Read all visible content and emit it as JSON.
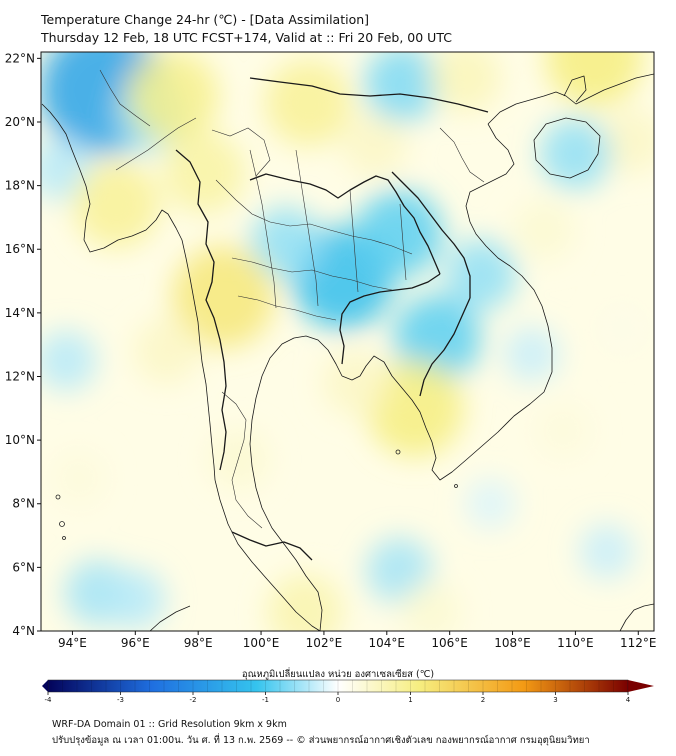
{
  "header": {
    "title": "Temperature Change 24-hr (℃) - [Data Assimilation]",
    "subtitle": "Thursday 12 Feb, 18 UTC FCST+174, Valid at :: Fri 20 Feb, 00 UTC"
  },
  "map": {
    "lon_range": [
      93,
      112.5
    ],
    "lat_range": [
      4,
      22.2
    ],
    "lat_ticks": [
      {
        "value": 22,
        "label": "22°N"
      },
      {
        "value": 20,
        "label": "20°N"
      },
      {
        "value": 18,
        "label": "18°N"
      },
      {
        "value": 16,
        "label": "16°N"
      },
      {
        "value": 14,
        "label": "14°N"
      },
      {
        "value": 12,
        "label": "12°N"
      },
      {
        "value": 10,
        "label": "10°N"
      },
      {
        "value": 8,
        "label": "8°N"
      },
      {
        "value": 6,
        "label": "6°N"
      },
      {
        "value": 4,
        "label": "4°N"
      }
    ],
    "lon_ticks": [
      {
        "value": 94,
        "label": "94°E"
      },
      {
        "value": 96,
        "label": "96°E"
      },
      {
        "value": 98,
        "label": "98°E"
      },
      {
        "value": 100,
        "label": "100°E"
      },
      {
        "value": 102,
        "label": "102°E"
      },
      {
        "value": 104,
        "label": "104°E"
      },
      {
        "value": 106,
        "label": "106°E"
      },
      {
        "value": 108,
        "label": "108°E"
      },
      {
        "value": 110,
        "label": "110°E"
      },
      {
        "value": 112,
        "label": "112°E"
      }
    ],
    "field_anomalies": [
      {
        "lon": 95,
        "lat": 21,
        "value": -1.7
      },
      {
        "lon": 96.5,
        "lat": 20.2,
        "value": -0.6
      },
      {
        "lon": 93.6,
        "lat": 18.5,
        "value": -0.4
      },
      {
        "lon": 97.2,
        "lat": 20.8,
        "value": 1.0
      },
      {
        "lon": 98.2,
        "lat": 18.4,
        "value": 0.8
      },
      {
        "lon": 95.4,
        "lat": 17.4,
        "value": 0.9
      },
      {
        "lon": 101.5,
        "lat": 20.6,
        "value": 0.9
      },
      {
        "lon": 103.6,
        "lat": 19.3,
        "value": 0.5
      },
      {
        "lon": 104.5,
        "lat": 21.2,
        "value": -0.7
      },
      {
        "lon": 106.5,
        "lat": 21.4,
        "value": 0.6
      },
      {
        "lon": 110.6,
        "lat": 22.0,
        "value": 1.1
      },
      {
        "lon": 111.8,
        "lat": 19.4,
        "value": 0.5
      },
      {
        "lon": 110.0,
        "lat": 19.0,
        "value": -0.6
      },
      {
        "lon": 102.6,
        "lat": 15.1,
        "value": -1.2
      },
      {
        "lon": 104.4,
        "lat": 16.5,
        "value": -0.9
      },
      {
        "lon": 100.8,
        "lat": 16.2,
        "value": -0.6
      },
      {
        "lon": 105.6,
        "lat": 13.2,
        "value": -0.9
      },
      {
        "lon": 107.0,
        "lat": 15.2,
        "value": -0.6
      },
      {
        "lon": 109.0,
        "lat": 16.6,
        "value": 0.4
      },
      {
        "lon": 98.8,
        "lat": 14.5,
        "value": 1.2
      },
      {
        "lon": 97.0,
        "lat": 12.8,
        "value": 0.5
      },
      {
        "lon": 104.9,
        "lat": 11.0,
        "value": 1.1
      },
      {
        "lon": 103.0,
        "lat": 11.8,
        "value": 0.5
      },
      {
        "lon": 108.6,
        "lat": 12.7,
        "value": -0.3
      },
      {
        "lon": 93.8,
        "lat": 12.5,
        "value": -0.4
      },
      {
        "lon": 94.2,
        "lat": 8.8,
        "value": 0.3
      },
      {
        "lon": 94.8,
        "lat": 5.2,
        "value": -0.5
      },
      {
        "lon": 96.0,
        "lat": 5.0,
        "value": -0.4
      },
      {
        "lon": 101.4,
        "lat": 4.6,
        "value": 0.7
      },
      {
        "lon": 104.4,
        "lat": 5.9,
        "value": -0.5
      },
      {
        "lon": 105.4,
        "lat": 4.6,
        "value": 0.4
      },
      {
        "lon": 107.3,
        "lat": 8.0,
        "value": -0.2
      },
      {
        "lon": 109.6,
        "lat": 10.3,
        "value": 0.3
      },
      {
        "lon": 111.0,
        "lat": 6.5,
        "value": -0.3
      },
      {
        "lon": 111.5,
        "lat": 13.5,
        "value": 0.2
      },
      {
        "lon": 99.3,
        "lat": 9.4,
        "value": 0.4
      }
    ]
  },
  "colorbar": {
    "title": "อุณหภูมิเปลี่ยนแปลง หน่วย องศาเซลเซียส (℃)",
    "min": -4,
    "max": 4,
    "ticks": [
      {
        "value": -4,
        "label": "-4"
      },
      {
        "value": -3,
        "label": "-3"
      },
      {
        "value": -2,
        "label": "-2"
      },
      {
        "value": -1,
        "label": "-1"
      },
      {
        "value": 0,
        "label": "0"
      },
      {
        "value": 1,
        "label": "1"
      },
      {
        "value": 2,
        "label": "2"
      },
      {
        "value": 3,
        "label": "3"
      },
      {
        "value": 4,
        "label": "4"
      }
    ],
    "colors": {
      "cold_max": "#03035a",
      "cold_mid": "#1f6fe0",
      "cool": "#35c4ee",
      "neutral": "#ffffff",
      "warm": "#f6ee80",
      "hot_mid": "#f39a14",
      "hot_max": "#7a0000"
    }
  },
  "footer": {
    "line1": "WRF-DA Domain 01 :: Grid Resolution 9km x 9km",
    "line2": "ปรับปรุงข้อมูล ณ เวลา 01:00น. วัน ศ. ที่ 13 ก.พ. 2569 -- © ส่วนพยากรณ์อากาศเชิงตัวเลข กองพยากรณ์อากาศ กรมอุตุนิยมวิทยา"
  }
}
